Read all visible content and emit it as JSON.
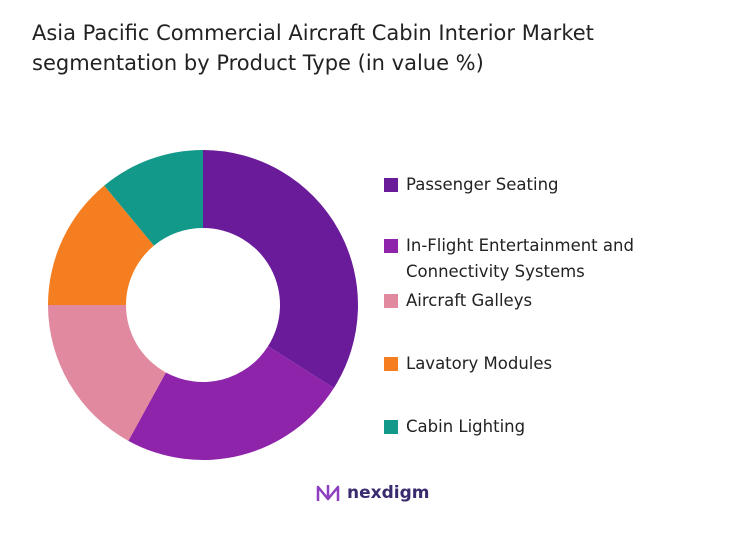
{
  "chart_data": {
    "type": "donut",
    "title": "Asia Pacific Commercial Aircraft Cabin Interior Market segmentation by Product Type (in value %)",
    "categories": [
      "Passenger Seating",
      "In-Flight Entertainment and Connectivity Systems",
      "Aircraft Galleys",
      "Lavatory Modules",
      "Cabin Lighting"
    ],
    "values": [
      34,
      24,
      17,
      14,
      11
    ],
    "colors": [
      "#6a1b9a",
      "#8e24aa",
      "#e0899f",
      "#f57f20",
      "#13998a"
    ],
    "legend": "right"
  },
  "logo": "nexdigm"
}
